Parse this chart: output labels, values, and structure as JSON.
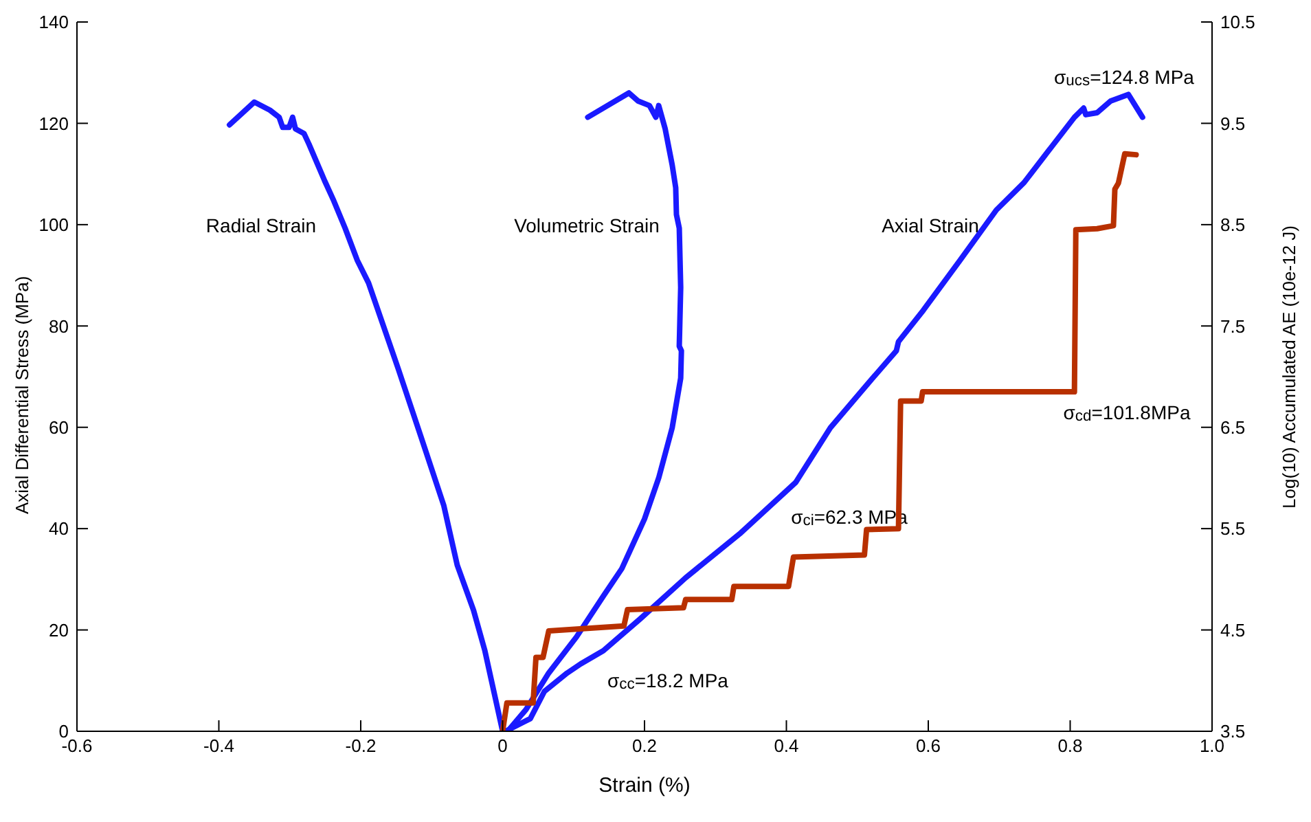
{
  "chart_data": {
    "type": "line",
    "xlabel": "Strain (%)",
    "ylabel": "Axial Differential Stress (MPa)",
    "y2label": "Log(10) Accumulated AE (10e-12 J)",
    "xlim": [
      -0.6,
      1.0
    ],
    "xticks": [
      -0.6,
      -0.4,
      -0.2,
      0,
      0.2,
      0.4,
      0.6,
      0.8,
      {
        "value": 1.0,
        "label": "1.0"
      }
    ],
    "ylim": [
      0,
      140
    ],
    "yticks": [
      0,
      20,
      40,
      60,
      80,
      100,
      120,
      140
    ],
    "y2lim": [
      3.5,
      10.5
    ],
    "y2ticks": [
      3.5,
      4.5,
      5.5,
      6.5,
      7.5,
      8.5,
      9.5,
      10.5
    ],
    "grid": false,
    "legend": false,
    "marker": "none",
    "line_style": "solid",
    "series": [
      {
        "color": "#1a1aff",
        "x": [
          -0.385,
          -0.35,
          -0.328,
          -0.315,
          -0.31,
          -0.301,
          -0.296,
          -0.292,
          -0.28,
          -0.273,
          -0.251,
          -0.238,
          -0.222,
          -0.205,
          -0.189,
          -0.147,
          -0.115,
          -0.083,
          -0.064,
          -0.041,
          -0.025,
          0.0
        ],
        "values": [
          119.7,
          124.2,
          122.6,
          121.2,
          119.2,
          119.2,
          121.2,
          118.9,
          118.0,
          115.9,
          108.7,
          104.7,
          99.3,
          93.0,
          88.5,
          71.5,
          58.1,
          44.6,
          32.8,
          23.9,
          15.9,
          0
        ]
      },
      {
        "color": "#1a1aff",
        "x": [
          0.12,
          0.178,
          0.191,
          0.207,
          0.216,
          0.22,
          0.229,
          0.239,
          0.244,
          0.245,
          0.249,
          0.251,
          0.249,
          0.252,
          0.251,
          0.239,
          0.22,
          0.2,
          0.168,
          0.142,
          0.104,
          0.065,
          0.033,
          0.007
        ],
        "values": [
          121.2,
          126.0,
          124.4,
          123.5,
          121.2,
          123.5,
          119.0,
          111.8,
          107.3,
          102.0,
          99.3,
          87.6,
          76.0,
          75.1,
          69.7,
          59.9,
          50.0,
          41.9,
          32.1,
          26.7,
          18.6,
          11.5,
          4.3,
          0
        ]
      },
      {
        "color": "#1a1aff",
        "x": [
          0.004,
          0.039,
          0.059,
          0.091,
          0.11,
          0.142,
          0.194,
          0.258,
          0.336,
          0.413,
          0.462,
          0.516,
          0.555,
          0.558,
          0.593,
          0.645,
          0.696,
          0.735,
          0.774,
          0.806,
          0.819,
          0.822,
          0.838,
          0.857,
          0.882,
          0.902
        ],
        "values": [
          0,
          2.5,
          7.9,
          11.5,
          13.3,
          15.9,
          22.2,
          30.3,
          39.2,
          49.1,
          59.9,
          68.8,
          75.1,
          76.9,
          83.1,
          93.0,
          102.9,
          108.3,
          115.4,
          121.2,
          123.0,
          121.7,
          122.1,
          124.4,
          125.7,
          121.2
        ]
      },
      {
        "color": "#b83000",
        "axis": "y2",
        "x": [
          0,
          0.006,
          0.043,
          0.047,
          0.057,
          0.065,
          0.171,
          0.176,
          0.255,
          0.258,
          0.323,
          0.326,
          0.403,
          0.41,
          0.51,
          0.513,
          0.558,
          0.561,
          0.59,
          0.592,
          0.806,
          0.808,
          0.838,
          0.861,
          0.863,
          0.868,
          0.877,
          0.893
        ],
        "values": [
          3.5,
          3.78,
          3.78,
          4.23,
          4.23,
          4.49,
          4.54,
          4.7,
          4.72,
          4.8,
          4.8,
          4.93,
          4.93,
          5.22,
          5.24,
          5.49,
          5.5,
          6.76,
          6.76,
          6.85,
          6.85,
          8.45,
          8.46,
          8.49,
          8.85,
          8.91,
          9.2,
          9.19
        ]
      }
    ],
    "annotations": [
      "Radial Strain",
      "Volumetric Strain",
      "Axial Strain",
      "σ$_{ucs}$=124.8 MPa",
      "σ$_{cd}$=101.8MPa",
      "σ$_{ci}$=62.3 MPa",
      "σ$_{cc}$=18.2 MPa"
    ]
  }
}
